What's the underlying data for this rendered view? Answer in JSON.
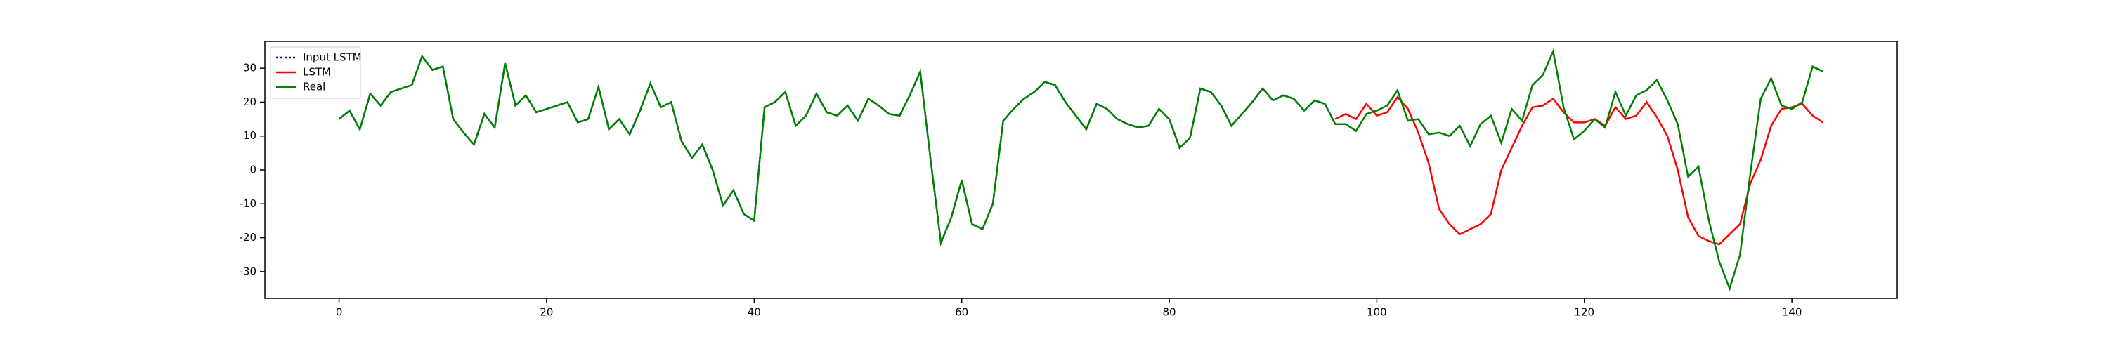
{
  "chart_data": {
    "type": "line",
    "x": [
      0,
      1,
      2,
      3,
      4,
      5,
      6,
      7,
      8,
      9,
      10,
      11,
      12,
      13,
      14,
      15,
      16,
      17,
      18,
      19,
      20,
      21,
      22,
      23,
      24,
      25,
      26,
      27,
      28,
      29,
      30,
      31,
      32,
      33,
      34,
      35,
      36,
      37,
      38,
      39,
      40,
      41,
      42,
      43,
      44,
      45,
      46,
      47,
      48,
      49,
      50,
      51,
      52,
      53,
      54,
      55,
      56,
      57,
      58,
      59,
      60,
      61,
      62,
      63,
      64,
      65,
      66,
      67,
      68,
      69,
      70,
      71,
      72,
      73,
      74,
      75,
      76,
      77,
      78,
      79,
      80,
      81,
      82,
      83,
      84,
      85,
      86,
      87,
      88,
      89,
      90,
      91,
      92,
      93,
      94,
      95,
      96,
      97,
      98,
      99,
      100,
      101,
      102,
      103,
      104,
      105,
      106,
      107,
      108,
      109,
      110,
      111,
      112,
      113,
      114,
      115,
      116,
      117,
      118,
      119,
      120,
      121,
      122,
      123,
      124,
      125,
      126,
      127,
      128,
      129,
      130,
      131,
      132,
      133,
      134,
      135,
      136,
      137,
      138,
      139,
      140,
      141,
      142,
      143
    ],
    "series": [
      {
        "name": "Input LSTM",
        "color": "#0000cc",
        "dash": true,
        "values": [
          15,
          17.5,
          12,
          22.5,
          19,
          23,
          24,
          25,
          33.5,
          29.5,
          30.5,
          15,
          11,
          7.5,
          16.5,
          12.5,
          31.5,
          19,
          22,
          17,
          18,
          19,
          20,
          14,
          15,
          24.5,
          12,
          15,
          10.5,
          17.5,
          25.5,
          18.5,
          20,
          8.5,
          3.5,
          7.5,
          0,
          -10.5,
          -6,
          -13,
          -15,
          18.5,
          20,
          23,
          13,
          16,
          22.5,
          17,
          16,
          19,
          14.5,
          21,
          19,
          16.5,
          16,
          22,
          29,
          3,
          -21.5,
          -14,
          -3,
          -16,
          -17.5,
          -10,
          14.5,
          18,
          21,
          23,
          26,
          25,
          20,
          16,
          12,
          19.5,
          18,
          15,
          13.5,
          12.5,
          13,
          18,
          15,
          6.5,
          9.5,
          24,
          23,
          19,
          13,
          16.5,
          20,
          24,
          20.5,
          22,
          21,
          17.5,
          20.5,
          19.5,
          13.5,
          null,
          null,
          null,
          null,
          null,
          null,
          null,
          null,
          null,
          null,
          null,
          null,
          null,
          null,
          null,
          null,
          null,
          null,
          null,
          null,
          null,
          null,
          null,
          null,
          null,
          null,
          null,
          null,
          null,
          null,
          null,
          null,
          null,
          null,
          null,
          null,
          null,
          null,
          null,
          null,
          null,
          null,
          null,
          null,
          null,
          null,
          null
        ]
      },
      {
        "name": "LSTM",
        "color": "#ff0000",
        "dash": false,
        "values": [
          null,
          null,
          null,
          null,
          null,
          null,
          null,
          null,
          null,
          null,
          null,
          null,
          null,
          null,
          null,
          null,
          null,
          null,
          null,
          null,
          null,
          null,
          null,
          null,
          null,
          null,
          null,
          null,
          null,
          null,
          null,
          null,
          null,
          null,
          null,
          null,
          null,
          null,
          null,
          null,
          null,
          null,
          null,
          null,
          null,
          null,
          null,
          null,
          null,
          null,
          null,
          null,
          null,
          null,
          null,
          null,
          null,
          null,
          null,
          null,
          null,
          null,
          null,
          null,
          null,
          null,
          null,
          null,
          null,
          null,
          null,
          null,
          null,
          null,
          null,
          null,
          null,
          null,
          null,
          null,
          null,
          null,
          null,
          null,
          null,
          null,
          null,
          null,
          null,
          null,
          null,
          null,
          null,
          null,
          null,
          null,
          15,
          16.5,
          15,
          19.5,
          16,
          17,
          21.5,
          18,
          11,
          2,
          -11.5,
          -16,
          -19,
          -17.5,
          -16,
          -13,
          0,
          6.5,
          13,
          18.5,
          19,
          21,
          17,
          14,
          14,
          15,
          13,
          18.5,
          15,
          16,
          20,
          15.5,
          10,
          0,
          -14,
          -19.5,
          -21,
          -22,
          -19,
          -16,
          -4,
          3,
          13,
          18,
          18.5,
          19.5,
          16,
          14
        ]
      },
      {
        "name": "Real",
        "color": "#008000",
        "dash": false,
        "values": [
          15,
          17.5,
          12,
          22.5,
          19,
          23,
          24,
          25,
          33.5,
          29.5,
          30.5,
          15,
          11,
          7.5,
          16.5,
          12.5,
          31.5,
          19,
          22,
          17,
          18,
          19,
          20,
          14,
          15,
          24.5,
          12,
          15,
          10.5,
          17.5,
          25.5,
          18.5,
          20,
          8.5,
          3.5,
          7.5,
          0,
          -10.5,
          -6,
          -13,
          -15,
          18.5,
          20,
          23,
          13,
          16,
          22.5,
          17,
          16,
          19,
          14.5,
          21,
          19,
          16.5,
          16,
          22,
          29,
          3,
          -21.5,
          -14,
          -3,
          -16,
          -17.5,
          -10,
          14.5,
          18,
          21,
          23,
          26,
          25,
          20,
          16,
          12,
          19.5,
          18,
          15,
          13.5,
          12.5,
          13,
          18,
          15,
          6.5,
          9.5,
          24,
          23,
          19,
          13,
          16.5,
          20,
          24,
          20.5,
          22,
          21,
          17.5,
          20.5,
          19.5,
          13.5,
          13.5,
          11.5,
          16.5,
          17.5,
          19,
          23.5,
          14.5,
          15,
          10.5,
          11,
          10,
          13,
          7,
          13.5,
          16,
          8,
          18,
          14.5,
          25,
          28,
          35,
          18.5,
          9,
          11.5,
          15,
          12.5,
          23,
          16,
          22,
          23.5,
          26.5,
          20.5,
          13.5,
          -2,
          1,
          -15,
          -27,
          -35,
          -25,
          -1,
          21,
          27,
          19,
          18,
          20,
          30.5,
          29
        ]
      }
    ],
    "xlim": [
      -7.15,
      150.15
    ],
    "xticks": [
      0,
      20,
      40,
      60,
      80,
      100,
      120,
      140
    ],
    "ylim": [
      -37.9,
      37.9
    ],
    "yticks": [
      -30,
      -20,
      -10,
      0,
      10,
      20,
      30
    ],
    "legend": "upper left"
  }
}
